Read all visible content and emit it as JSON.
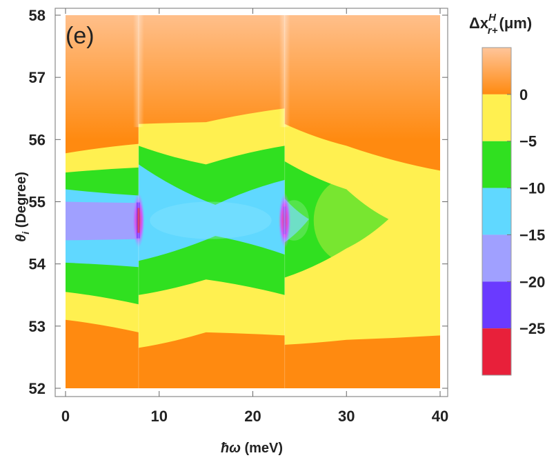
{
  "chart_data": {
    "type": "heatmap",
    "panel_label": "(e)",
    "xlabel": "ħω (meV)",
    "xlabel_parts": {
      "symbol": "ħω",
      "rest": " (meV)"
    },
    "ylabel": "θi (Degree)",
    "ylabel_parts": {
      "symbol": "θ",
      "sub": "i",
      "rest": " (Degree)"
    },
    "xlim": [
      0,
      40
    ],
    "ylim": [
      52,
      58
    ],
    "x_ticks": [
      "0",
      "10",
      "20",
      "30",
      "40"
    ],
    "y_ticks": [
      "52",
      "53",
      "54",
      "55",
      "56",
      "57",
      "58"
    ],
    "x_tick_values": [
      0,
      10,
      20,
      30,
      40
    ],
    "y_tick_values": [
      52,
      53,
      54,
      55,
      56,
      57,
      58
    ],
    "colorbar": {
      "title": "Δx^H_r+ (μm)",
      "title_parts": {
        "delta": "Δx",
        "sup": "H",
        "sub": "r+",
        "unit": "(μm)"
      },
      "range": [
        -30,
        5
      ],
      "tick_values": [
        0,
        -5,
        -10,
        -15,
        -20,
        -25
      ],
      "tick_labels": [
        "0",
        "−5",
        "−10",
        "−15",
        "−20",
        "−25"
      ],
      "bands": [
        {
          "from": 0,
          "to": 5,
          "color": "#ff8a10",
          "top_color": "#ffc59a"
        },
        {
          "from": -5,
          "to": 0,
          "color": "#fff050"
        },
        {
          "from": -10,
          "to": -5,
          "color": "#30e020"
        },
        {
          "from": -15,
          "to": -10,
          "color": "#60d8ff"
        },
        {
          "from": -20,
          "to": -15,
          "color": "#a0a0ff"
        },
        {
          "from": -25,
          "to": -20,
          "color": "#6a3aff"
        },
        {
          "from": -30,
          "to": -25,
          "color": "#e8203a"
        }
      ]
    },
    "resonances_meV": [
      7.8,
      23.4
    ],
    "center_angle_deg": 54.7,
    "contours": {
      "orange_yellow_upper": [
        [
          0,
          55.78
        ],
        [
          7.8,
          55.93
        ],
        [
          7.8,
          56.25
        ],
        [
          15,
          56.28
        ],
        [
          23.4,
          56.5
        ],
        [
          23.4,
          56.25
        ],
        [
          30,
          55.9
        ],
        [
          40,
          55.5
        ]
      ],
      "orange_yellow_lower": [
        [
          0,
          53.1
        ],
        [
          7.8,
          52.9
        ],
        [
          7.8,
          52.65
        ],
        [
          15,
          52.9
        ],
        [
          23.4,
          52.85
        ],
        [
          23.4,
          52.7
        ],
        [
          30,
          52.78
        ],
        [
          40,
          52.85
        ]
      ],
      "yellow_green_upper": [
        [
          0,
          55.47
        ],
        [
          7.8,
          55.55
        ],
        [
          7.8,
          55.9
        ],
        [
          15,
          55.6
        ],
        [
          23.4,
          55.9
        ],
        [
          23.4,
          55.65
        ],
        [
          30,
          55.2
        ],
        [
          34.5,
          54.72
        ]
      ],
      "yellow_green_lower": [
        [
          0,
          53.55
        ],
        [
          7.8,
          53.35
        ],
        [
          7.8,
          53.5
        ],
        [
          15,
          53.75
        ],
        [
          23.4,
          53.5
        ],
        [
          23.4,
          53.78
        ],
        [
          30,
          54.25
        ],
        [
          34.5,
          54.72
        ]
      ],
      "green_cyan_upper": [
        [
          0,
          55.2
        ],
        [
          7.8,
          55.1
        ],
        [
          7.8,
          55.6
        ],
        [
          16,
          54.95
        ],
        [
          23.4,
          55.35
        ],
        [
          23.4,
          55.05
        ],
        [
          26,
          54.72
        ]
      ],
      "green_cyan_lower": [
        [
          0,
          54.02
        ],
        [
          7.8,
          53.95
        ],
        [
          7.8,
          54.05
        ],
        [
          16,
          54.45
        ],
        [
          23.4,
          54.15
        ],
        [
          23.4,
          54.35
        ],
        [
          26,
          54.72
        ]
      ],
      "cyan_purple_upper": [
        [
          0,
          55.0
        ],
        [
          7.8,
          54.98
        ]
      ],
      "cyan_purple_lower": [
        [
          0,
          54.38
        ],
        [
          7.8,
          54.4
        ]
      ]
    },
    "grid": false,
    "legend": "colorbar-right"
  }
}
